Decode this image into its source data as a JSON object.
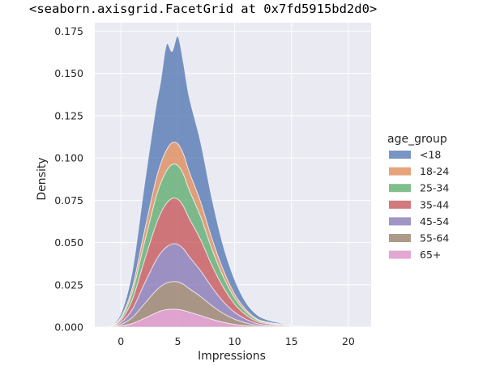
{
  "output_repr": "<seaborn.axisgrid.FacetGrid at 0x7fd5915bd2d0>",
  "colors": {
    "plot_background": "#eaeaf2",
    "grid": "#ffffff",
    "series": [
      "#4c72b0",
      "#dd8452",
      "#55a868",
      "#c44e52",
      "#8172b3",
      "#937860",
      "#da8bc3"
    ]
  },
  "chart_data": {
    "type": "area",
    "stacked": true,
    "xlabel": "Impressions",
    "ylabel": "Density",
    "xlim": [
      -2.3,
      22
    ],
    "ylim": [
      0,
      0.18
    ],
    "xticks": [
      0,
      5,
      10,
      15,
      20
    ],
    "yticks": [
      0.0,
      0.025,
      0.05,
      0.075,
      0.1,
      0.125,
      0.15,
      0.175
    ],
    "ytick_labels": [
      "0.000",
      "0.025",
      "0.050",
      "0.075",
      "0.100",
      "0.125",
      "0.150",
      "0.175"
    ],
    "grid": true,
    "legend_title": "age_group",
    "legend_position": "right",
    "x": [
      -1,
      0,
      1,
      2,
      3,
      3.5,
      4,
      4.5,
      5,
      5.5,
      6,
      7,
      8,
      9,
      10,
      11,
      12,
      13,
      14,
      15,
      16,
      18,
      20
    ],
    "series": [
      {
        "name": "65+",
        "values": [
          0,
          0.0006,
          0.0021,
          0.005,
          0.0081,
          0.0095,
          0.0103,
          0.0105,
          0.0104,
          0.0098,
          0.0088,
          0.0068,
          0.0046,
          0.0028,
          0.0015,
          0.0008,
          0.0003,
          0.0002,
          0.0001,
          0,
          0,
          0,
          0
        ]
      },
      {
        "name": "55-64",
        "values": [
          0,
          0.0009,
          0.0035,
          0.0082,
          0.0128,
          0.0145,
          0.0157,
          0.0163,
          0.0163,
          0.0154,
          0.0139,
          0.0112,
          0.008,
          0.0052,
          0.0031,
          0.0016,
          0.0007,
          0.0004,
          0.0003,
          0.0001,
          0,
          0,
          0
        ]
      },
      {
        "name": "45-54",
        "values": [
          0,
          0.0012,
          0.0048,
          0.0115,
          0.0175,
          0.0198,
          0.0213,
          0.0223,
          0.0221,
          0.021,
          0.0189,
          0.0153,
          0.0109,
          0.007,
          0.0041,
          0.0022,
          0.001,
          0.0006,
          0.0004,
          0.0002,
          0.0001,
          0,
          0
        ]
      },
      {
        "name": "35-44",
        "values": [
          0,
          0.0013,
          0.0057,
          0.0132,
          0.0205,
          0.0235,
          0.0258,
          0.0269,
          0.0268,
          0.0251,
          0.0226,
          0.0183,
          0.0129,
          0.0084,
          0.0048,
          0.0025,
          0.0012,
          0.0007,
          0.0005,
          0.0002,
          0.0001,
          0,
          0
        ]
      },
      {
        "name": "25-34",
        "values": [
          0,
          0.0011,
          0.0043,
          0.0101,
          0.0158,
          0.0178,
          0.0192,
          0.0201,
          0.0199,
          0.0188,
          0.0168,
          0.0137,
          0.0096,
          0.0063,
          0.0036,
          0.0019,
          0.0009,
          0.0005,
          0.0004,
          0.0002,
          0,
          0,
          0
        ]
      },
      {
        "name": "18-24",
        "values": [
          0,
          0.0007,
          0.0028,
          0.0065,
          0.0101,
          0.0114,
          0.0123,
          0.0129,
          0.0128,
          0.012,
          0.0108,
          0.0087,
          0.0062,
          0.004,
          0.0023,
          0.0012,
          0.0006,
          0.0003,
          0.0002,
          0.0001,
          0,
          0,
          0
        ]
      },
      {
        "name": "<18",
        "values": [
          0,
          0.0022,
          0.0098,
          0.0265,
          0.0422,
          0.049,
          0.0624,
          0.054,
          0.0637,
          0.0539,
          0.0442,
          0.0355,
          0.0238,
          0.0143,
          0.0086,
          0.0043,
          0.0023,
          0.0013,
          0.0006,
          0.0002,
          0.0002,
          0.0001,
          0
        ]
      }
    ],
    "legend_order": [
      "<18",
      "18-24",
      "25-34",
      "35-44",
      "45-54",
      "55-64",
      "65+"
    ]
  }
}
